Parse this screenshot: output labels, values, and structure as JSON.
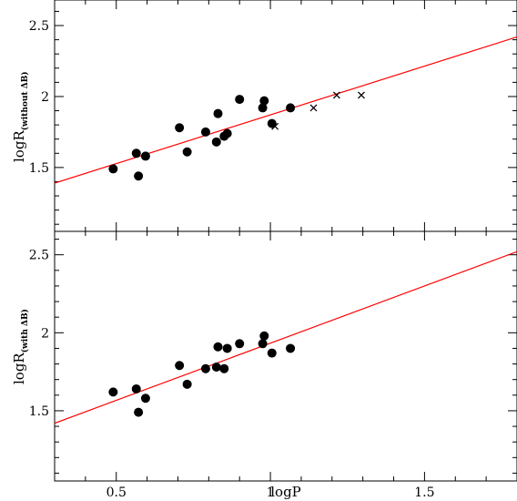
{
  "chart_data": [
    {
      "type": "scatter",
      "panel": "top",
      "xlabel": "",
      "ylabel_main": "logR",
      "ylabel_sub": "(without ΔB)",
      "xlim": [
        0.3,
        1.8
      ],
      "ylim": [
        1.05,
        2.68
      ],
      "yticks": [
        "1.5",
        "2",
        "2.5"
      ],
      "grid": false,
      "series": [
        {
          "marker": "circle",
          "color": "#000000",
          "points": [
            [
              0.49,
              1.49
            ],
            [
              0.565,
              1.6
            ],
            [
              0.572,
              1.44
            ],
            [
              0.595,
              1.58
            ],
            [
              0.705,
              1.78
            ],
            [
              0.73,
              1.61
            ],
            [
              0.79,
              1.75
            ],
            [
              0.825,
              1.68
            ],
            [
              0.83,
              1.88
            ],
            [
              0.85,
              1.72
            ],
            [
              0.86,
              1.74
            ],
            [
              0.9,
              1.98
            ],
            [
              0.975,
              1.92
            ],
            [
              0.98,
              1.97
            ],
            [
              1.005,
              1.81
            ],
            [
              1.065,
              1.92
            ]
          ]
        },
        {
          "marker": "cross",
          "color": "#000000",
          "points": [
            [
              1.015,
              1.79
            ],
            [
              1.14,
              1.92
            ],
            [
              1.215,
              2.01
            ],
            [
              1.295,
              2.01
            ]
          ]
        }
      ],
      "fit_line": {
        "color": "#ff0000",
        "x": [
          0.3,
          1.8
        ],
        "y": [
          1.39,
          2.42
        ]
      }
    },
    {
      "type": "scatter",
      "panel": "bottom",
      "xlabel": "logP",
      "ylabel_main": "logR",
      "ylabel_sub": "(with ΔB)",
      "xlim": [
        0.3,
        1.8
      ],
      "ylim": [
        1.05,
        2.65
      ],
      "xticks": [
        "0.5",
        "1",
        "1.5"
      ],
      "yticks": [
        "1.5",
        "2",
        "2.5"
      ],
      "grid": false,
      "series": [
        {
          "marker": "circle",
          "color": "#000000",
          "points": [
            [
              0.49,
              1.62
            ],
            [
              0.565,
              1.64
            ],
            [
              0.572,
              1.49
            ],
            [
              0.595,
              1.58
            ],
            [
              0.705,
              1.79
            ],
            [
              0.73,
              1.67
            ],
            [
              0.79,
              1.77
            ],
            [
              0.825,
              1.78
            ],
            [
              0.83,
              1.91
            ],
            [
              0.85,
              1.77
            ],
            [
              0.86,
              1.9
            ],
            [
              0.9,
              1.93
            ],
            [
              0.975,
              1.93
            ],
            [
              0.98,
              1.98
            ],
            [
              1.005,
              1.87
            ],
            [
              1.065,
              1.9
            ]
          ]
        }
      ],
      "fit_line": {
        "color": "#ff0000",
        "x": [
          0.3,
          1.8
        ],
        "y": [
          1.42,
          2.52
        ]
      }
    }
  ]
}
